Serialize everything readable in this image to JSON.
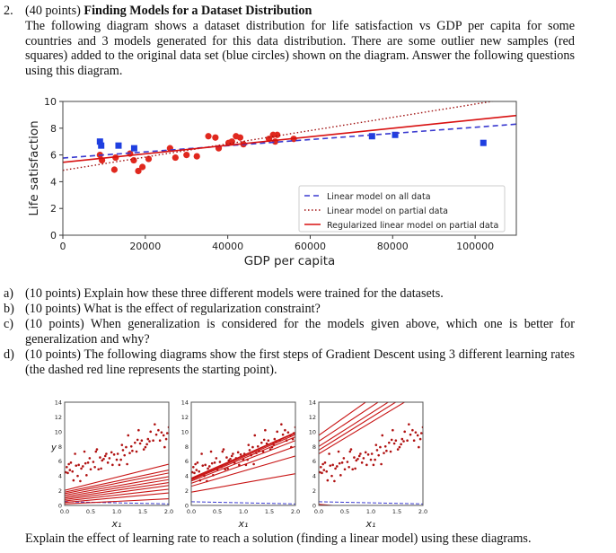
{
  "question": {
    "number": "2.",
    "points": "(40 points)",
    "title": "Finding Models for a Dataset Distribution",
    "intro": "The following diagram shows a dataset distribution for life satisfaction vs GDP per capita for some countries and 3 models generated for this data distribution. There are some outlier new samples (red squares) added to the original data set (blue circles) shown on the diagram. Answer the following questions using this diagram.",
    "parts": [
      {
        "label": "a)",
        "text": "(10 points) Explain how these three different models were trained for the datasets."
      },
      {
        "label": "b)",
        "text": "(10 points) What is the effect of regularization constraint?"
      },
      {
        "label": "c)",
        "text": "(10 points) When generalization is considered for the models given above, which one is better for generalization and why?"
      },
      {
        "label": "d)",
        "text": "(10 points) The following diagrams show the first steps of Gradient Descent using 3 different learning rates (the dashed red line represents the starting point)."
      }
    ],
    "closing": "Explain the effect of learning rate to reach a solution (finding a linear model) using these diagrams."
  },
  "chart_data": [
    {
      "type": "scatter",
      "xlabel": "GDP per capita",
      "ylabel": "Life satisfaction",
      "xlim": [
        0,
        110000
      ],
      "ylim": [
        0,
        10
      ],
      "xticks": [
        "0",
        "20000",
        "40000",
        "60000",
        "80000",
        "100000"
      ],
      "yticks": [
        "0",
        "2",
        "4",
        "6",
        "8",
        "10"
      ],
      "grid": false,
      "legend_position": "bottom-right",
      "colors": {
        "circles": "#e0281e",
        "squares": "#1f3fe0",
        "all": "#3a3ad0",
        "partial": "#a01010",
        "regularized": "#d81010"
      },
      "circles": [
        [
          9000,
          6.0
        ],
        [
          9500,
          5.6
        ],
        [
          12500,
          4.9
        ],
        [
          12800,
          5.8
        ],
        [
          16300,
          6.1
        ],
        [
          17200,
          5.6
        ],
        [
          18300,
          4.8
        ],
        [
          19300,
          5.1
        ],
        [
          20800,
          5.7
        ],
        [
          26000,
          6.5
        ],
        [
          27300,
          5.8
        ],
        [
          30000,
          6.0
        ],
        [
          32500,
          5.9
        ],
        [
          35300,
          7.4
        ],
        [
          37000,
          7.3
        ],
        [
          37800,
          6.5
        ],
        [
          40200,
          6.9
        ],
        [
          41000,
          7.0
        ],
        [
          42000,
          7.4
        ],
        [
          43000,
          7.3
        ],
        [
          43800,
          6.8
        ],
        [
          50000,
          7.2
        ],
        [
          51000,
          7.5
        ],
        [
          51500,
          7.0
        ],
        [
          52000,
          7.5
        ],
        [
          56000,
          7.2
        ]
      ],
      "squares": [
        [
          9000,
          7.0
        ],
        [
          9300,
          6.7
        ],
        [
          13500,
          6.7
        ],
        [
          17300,
          6.5
        ],
        [
          75000,
          7.4
        ],
        [
          80600,
          7.5
        ],
        [
          102000,
          6.9
        ]
      ],
      "series": [
        {
          "name": "Linear model on all data",
          "style": "dashed",
          "points": [
            [
              0,
              5.77
            ],
            [
              110000,
              8.3
            ]
          ]
        },
        {
          "name": "Linear model on partial data",
          "style": "dotted",
          "points": [
            [
              0,
              4.85
            ],
            [
              104000,
              10.0
            ]
          ]
        },
        {
          "name": "Regularized linear model on partial data",
          "style": "solid",
          "points": [
            [
              0,
              5.45
            ],
            [
              110000,
              8.95
            ]
          ]
        }
      ]
    },
    {
      "type": "line",
      "panels": [
        {
          "ylabel": "y",
          "lines": [
            [
              0.2,
              0.9
            ],
            [
              0.4,
              1.7
            ],
            [
              0.6,
              2.2
            ],
            [
              0.8,
              2.7
            ],
            [
              1.0,
              3.1
            ],
            [
              1.2,
              3.5
            ],
            [
              1.4,
              3.9
            ],
            [
              1.6,
              4.4
            ],
            [
              1.8,
              4.8
            ],
            [
              2.05,
              5.6
            ]
          ]
        },
        {
          "ylabel": "",
          "lines": [
            [
              1.8,
              4.3
            ],
            [
              2.6,
              6.7
            ],
            [
              3.0,
              8.0
            ],
            [
              3.3,
              8.8
            ],
            [
              3.45,
              9.3
            ],
            [
              3.55,
              9.6
            ],
            [
              3.65,
              9.8
            ],
            [
              3.7,
              9.9
            ]
          ]
        },
        {
          "ylabel": "",
          "lines": [
            [
              7.0,
              15.5
            ],
            [
              7.5,
              16.3
            ],
            [
              8.0,
              17.0
            ],
            [
              8.7,
              18.0
            ],
            [
              9.5,
              19.5
            ],
            [
              0.15,
              -1.0
            ]
          ]
        }
      ],
      "start_line": [
        0.5,
        0.2
      ],
      "xlabel": "x₁",
      "xlim": [
        0,
        2
      ],
      "ylim": [
        0,
        14
      ],
      "xticks": [
        "0.0",
        "0.5",
        "1.0",
        "1.5",
        "2.0"
      ],
      "yticks": [
        "0",
        "2",
        "4",
        "6",
        "8",
        "10",
        "12",
        "14"
      ],
      "points": [
        [
          0.02,
          4.5
        ],
        [
          0.04,
          5.2
        ],
        [
          0.06,
          4.4
        ],
        [
          0.08,
          5.6
        ],
        [
          0.1,
          4.8
        ],
        [
          0.12,
          5.8
        ],
        [
          0.15,
          4.6
        ],
        [
          0.17,
          3.4
        ],
        [
          0.2,
          7.0
        ],
        [
          0.22,
          5.4
        ],
        [
          0.25,
          4.0
        ],
        [
          0.27,
          5.5
        ],
        [
          0.3,
          3.3
        ],
        [
          0.32,
          5.0
        ],
        [
          0.35,
          5.3
        ],
        [
          0.38,
          7.3
        ],
        [
          0.4,
          5.7
        ],
        [
          0.42,
          4.1
        ],
        [
          0.45,
          5.8
        ],
        [
          0.48,
          6.4
        ],
        [
          0.5,
          4.9
        ],
        [
          0.55,
          5.9
        ],
        [
          0.58,
          5.2
        ],
        [
          0.6,
          7.3
        ],
        [
          0.62,
          7.6
        ],
        [
          0.65,
          4.9
        ],
        [
          0.68,
          6.5
        ],
        [
          0.7,
          5.0
        ],
        [
          0.72,
          6.1
        ],
        [
          0.75,
          6.3
        ],
        [
          0.78,
          6.7
        ],
        [
          0.8,
          7.0
        ],
        [
          0.83,
          5.8
        ],
        [
          0.86,
          6.4
        ],
        [
          0.9,
          7.2
        ],
        [
          0.92,
          5.5
        ],
        [
          0.95,
          6.9
        ],
        [
          1.0,
          6.2
        ],
        [
          1.02,
          7.0
        ],
        [
          1.05,
          5.5
        ],
        [
          1.08,
          6.2
        ],
        [
          1.1,
          8.2
        ],
        [
          1.12,
          7.5
        ],
        [
          1.15,
          6.8
        ],
        [
          1.18,
          7.9
        ],
        [
          1.2,
          5.6
        ],
        [
          1.22,
          9.5
        ],
        [
          1.25,
          7.1
        ],
        [
          1.28,
          8.0
        ],
        [
          1.3,
          7.4
        ],
        [
          1.35,
          8.5
        ],
        [
          1.38,
          7.3
        ],
        [
          1.4,
          8.9
        ],
        [
          1.42,
          10.2
        ],
        [
          1.45,
          8.4
        ],
        [
          1.48,
          8.8
        ],
        [
          1.52,
          7.6
        ],
        [
          1.55,
          7.9
        ],
        [
          1.58,
          8.3
        ],
        [
          1.6,
          9.0
        ],
        [
          1.63,
          8.7
        ],
        [
          1.65,
          10.0
        ],
        [
          1.7,
          8.8
        ],
        [
          1.73,
          11.0
        ],
        [
          1.76,
          9.6
        ],
        [
          1.8,
          10.2
        ],
        [
          1.83,
          8.8
        ],
        [
          1.86,
          9.9
        ],
        [
          1.9,
          9.5
        ],
        [
          1.92,
          7.9
        ],
        [
          1.95,
          9.0
        ],
        [
          1.97,
          9.8
        ],
        [
          2.0,
          10.6
        ]
      ]
    }
  ]
}
